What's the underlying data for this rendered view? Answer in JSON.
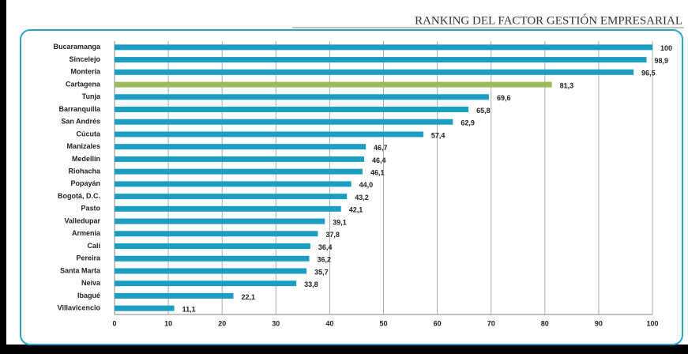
{
  "chart_data": {
    "type": "hbar",
    "title": "RANKING DEL FACTOR GESTIÓN EMPRESARIAL",
    "categories": [
      "Bucaramanga",
      "Sincelejo",
      "Montería",
      "Cartagena",
      "Tunja",
      "Barranquilla",
      "San Andrés",
      "Cúcuta",
      "Manizales",
      "Medellín",
      "Riohacha",
      "Popayán",
      "Bogotá, D.C.",
      "Pasto",
      "Valledupar",
      "Armenia",
      "Cali",
      "Pereira",
      "Santa Marta",
      "Neiva",
      "Ibagué",
      "Villavicencio"
    ],
    "values": [
      100,
      98.9,
      96.5,
      81.3,
      69.6,
      65.8,
      62.9,
      57.4,
      46.7,
      46.4,
      46.1,
      44.0,
      43.2,
      42.1,
      39.1,
      37.8,
      36.4,
      36.2,
      35.7,
      33.8,
      22.1,
      11.1
    ],
    "value_labels": [
      "100",
      "98,9",
      "96,5",
      "81,3",
      "69,6",
      "65,8",
      "62,9",
      "57,4",
      "46,7",
      "46,4",
      "46,1",
      "44,0",
      "43,2",
      "42,1",
      "39,1",
      "37,8",
      "36,4",
      "36,2",
      "35,7",
      "33,8",
      "22,1",
      "11,1"
    ],
    "colors": [
      "#1b9ec2",
      "#1b9ec2",
      "#1b9ec2",
      "#9bbb59",
      "#1b9ec2",
      "#1b9ec2",
      "#1b9ec2",
      "#1b9ec2",
      "#1b9ec2",
      "#1b9ec2",
      "#1b9ec2",
      "#1b9ec2",
      "#1b9ec2",
      "#1b9ec2",
      "#1b9ec2",
      "#1b9ec2",
      "#1b9ec2",
      "#1b9ec2",
      "#1b9ec2",
      "#1b9ec2",
      "#1b9ec2",
      "#1b9ec2"
    ],
    "xlim": [
      0,
      100
    ],
    "xticks": [
      0,
      10,
      20,
      30,
      40,
      50,
      60,
      70,
      80,
      90,
      100
    ],
    "grid": true
  }
}
